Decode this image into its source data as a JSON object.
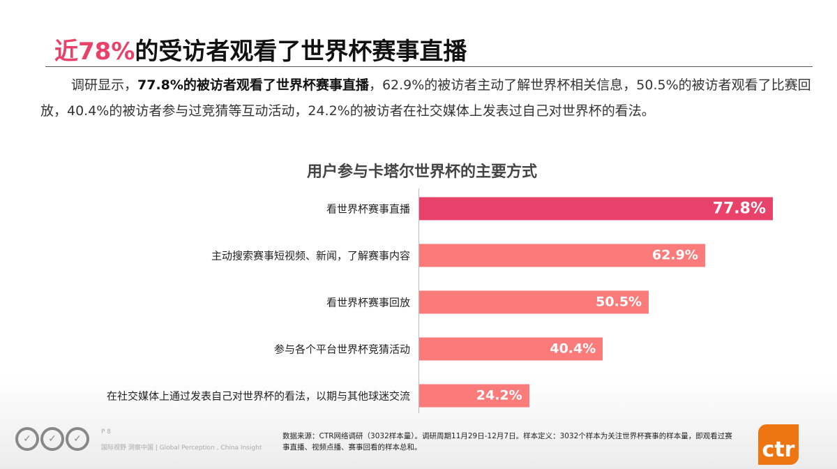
{
  "title": {
    "highlight": "近78%",
    "rest": "的受访者观看了世界杯赛事直播"
  },
  "paragraph": {
    "lead": "调研显示，",
    "bold": "77.8%的被访者观看了世界杯赛事直播",
    "rest": "，62.9%的被访者主动了解世界杯相关信息，50.5%的被访者观看了比赛回放，40.4%的被访者参与过竞猜等互动活动，24.2%的被访者在社交媒体上发表过自己对世界杯的看法。"
  },
  "chart_data": {
    "type": "bar",
    "orientation": "horizontal",
    "title": "用户参与卡塔尔世界杯的主要方式",
    "categories": [
      "看世界杯赛事直播",
      "主动搜索赛事短视频、新闻，了解赛事内容",
      "看世界杯赛事回放",
      "参与各个平台世界杯竞猜活动",
      "在社交媒体上通过发表自己对世界杯的看法，以期与其他球迷交流"
    ],
    "values": [
      77.8,
      62.9,
      50.5,
      40.4,
      24.2
    ],
    "data_labels": [
      "77.8%",
      "62.9%",
      "50.5%",
      "40.4%",
      "24.2%"
    ],
    "colors": [
      "#e8416a",
      "#fb7b7b",
      "#fb7b7b",
      "#fb7b7b",
      "#fb7b7b"
    ],
    "xlim": [
      0,
      80
    ]
  },
  "footer": {
    "page": "P 8",
    "slogan": "国际视野 洞察中国 | Global Perception , China Insight",
    "source": "数据来源：CTR网络调研（3032样本量）。调研周期11月29日-12月7日。样本定义：3032个样本为关注世界杯赛事的样本量，即观看过赛事直播、视频点播、赛事回看的样本总和。",
    "logo": "ctr",
    "seal_icons": [
      "iso-seal-icon",
      "iso-seal-icon",
      "iso-seal-icon"
    ]
  }
}
